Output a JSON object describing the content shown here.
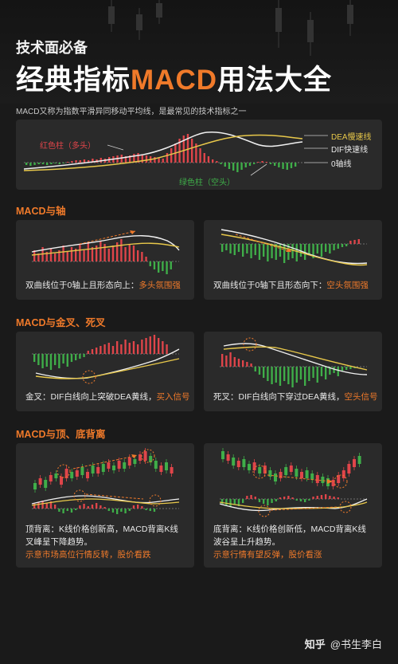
{
  "header": {
    "kicker": "技术面必备",
    "title_prefix": "经典指标",
    "title_highlight": "MACD",
    "title_suffix": "用法大全",
    "subtitle": "MACD又称为指数平滑异同移动平均线，是最常见的技术指标之一"
  },
  "legend": {
    "dea": "DEA慢速线",
    "dif": "DIF快速线",
    "zero": "0轴线",
    "red_bar": "红色柱（多头）",
    "green_bar": "绿色柱（空头）"
  },
  "sections": [
    {
      "title": "MACD与轴",
      "cards": [
        {
          "text": "双曲线位于0轴上且形态向上：",
          "highlight": "多头氛围强"
        },
        {
          "text": "双曲线位于0轴下且形态向下：",
          "highlight": "空头氛围强"
        }
      ]
    },
    {
      "title": "MACD与金叉、死叉",
      "cards": [
        {
          "text": "金叉：DIF白线向上突破DEA黄线，",
          "highlight": "买入信号"
        },
        {
          "text": "死叉：DIF白线向下穿过DEA黄线，",
          "highlight": "空头信号"
        }
      ]
    },
    {
      "title": "MACD与顶、底背离",
      "cards": [
        {
          "line1": "顶背离：K线价格创新高，MACD背离K线",
          "line2": "叉峰呈下降趋势。",
          "highlight": "示意市场高位行情反转，股价看跌"
        },
        {
          "line1": "底背离：K线价格创新低，MACD背离K线",
          "line2": "波谷呈上升趋势。",
          "highlight": "示意行情有望反弹，股价看涨"
        }
      ]
    }
  ],
  "footer": {
    "brand": "知乎",
    "author": "@书生李白"
  },
  "colors": {
    "accent": "#f07a2a",
    "red": "#e0454a",
    "green": "#3fae49",
    "dea": "#e8c84a",
    "dif": "#f0f0f0"
  }
}
